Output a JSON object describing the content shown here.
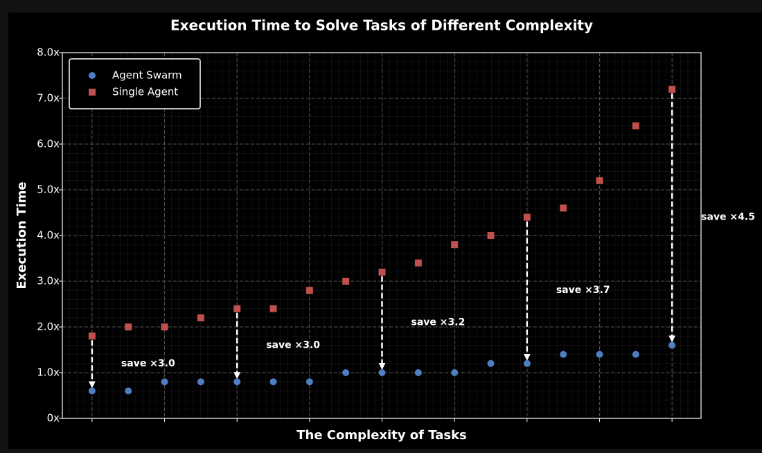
{
  "chart_data": {
    "type": "scatter",
    "title": "Execution Time to Solve Tasks of Different Complexity",
    "xlabel": "The Complexity of Tasks",
    "ylabel": "Execution Time",
    "x": [
      1,
      2,
      3,
      4,
      5,
      6,
      7,
      8,
      9,
      10,
      11,
      12,
      13,
      14,
      15,
      16,
      17
    ],
    "series": [
      {
        "name": "Agent Swarm",
        "color": "#4f7ec2",
        "marker": "circle",
        "values": [
          0.6,
          0.6,
          0.8,
          0.8,
          0.8,
          0.8,
          0.8,
          1.0,
          1.0,
          1.0,
          1.0,
          1.2,
          1.2,
          1.4,
          1.4,
          1.4,
          1.6
        ]
      },
      {
        "name": "Single Agent",
        "color": "#c0504d",
        "marker": "square",
        "values": [
          1.8,
          2.0,
          2.0,
          2.2,
          2.4,
          2.4,
          2.8,
          3.0,
          3.2,
          3.4,
          3.8,
          4.0,
          4.4,
          4.6,
          5.2,
          6.4,
          7.2
        ]
      }
    ],
    "xlim": [
      0.18,
      17.8
    ],
    "xticks": [
      1,
      3,
      5,
      7,
      9,
      11,
      13,
      15,
      17
    ],
    "show_xtick_labels": false,
    "ylim": [
      0,
      8
    ],
    "yticks": [
      {
        "value": 0,
        "label": "0x"
      },
      {
        "value": 1,
        "label": "1.0x"
      },
      {
        "value": 2,
        "label": "2.0x"
      },
      {
        "value": 3,
        "label": "3.0x"
      },
      {
        "value": 4,
        "label": "4.0x"
      },
      {
        "value": 5,
        "label": "5.0x"
      },
      {
        "value": 6,
        "label": "6.0x"
      },
      {
        "value": 7,
        "label": "7.0x"
      },
      {
        "value": 8,
        "label": "8.0x"
      }
    ],
    "grid": true,
    "legend": "upper left",
    "annotations": [
      {
        "text": "save ×3.0",
        "x": 1
      },
      {
        "text": "save ×3.0",
        "x": 5
      },
      {
        "text": "save ×3.2",
        "x": 9
      },
      {
        "text": "save ×3.7",
        "x": 13
      },
      {
        "text": "save ×4.5",
        "x": 17
      }
    ]
  }
}
